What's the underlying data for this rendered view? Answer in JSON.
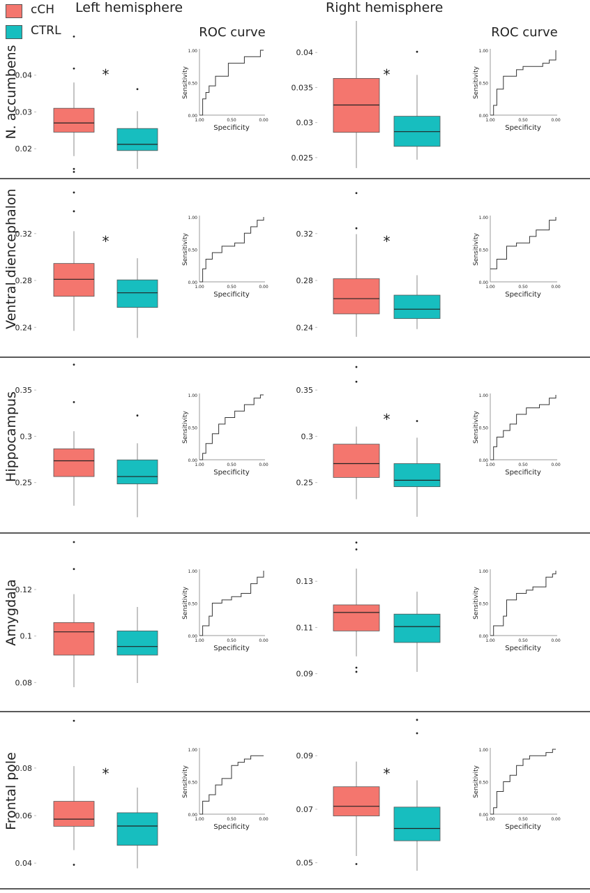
{
  "figure": {
    "left_heading": "Left hemisphere",
    "right_heading": "Right hemisphere",
    "roc_title": "ROC curve",
    "significance_marker": "*"
  },
  "legend": [
    {
      "name": "cCH",
      "color": "#F4766E"
    },
    {
      "name": "CTRL",
      "color": "#17BEBF"
    }
  ],
  "chart_data": [
    {
      "type": "boxplot",
      "region": "N. accumbens",
      "hemisphere": "left",
      "significant": true,
      "yticks": [
        0.02,
        0.03,
        0.04
      ],
      "ylim": [
        0.0115,
        0.0555
      ],
      "series": [
        {
          "name": "cCH",
          "whisker_low": 0.018,
          "q1": 0.0245,
          "median": 0.027,
          "q3": 0.031,
          "whisker_high": 0.038,
          "outliers": [
            0.0137,
            0.0145,
            0.0418,
            0.0505
          ]
        },
        {
          "name": "CTRL",
          "whisker_low": 0.0145,
          "q1": 0.0195,
          "median": 0.0212,
          "q3": 0.0255,
          "whisker_high": 0.0302,
          "outliers": [
            0.0362
          ]
        }
      ]
    },
    {
      "type": "roc",
      "region": "N. accumbens",
      "hemisphere": "left",
      "xlabel": "Specificity",
      "ylabel": "Sensitivity",
      "xticks": [
        "1.00",
        "0.50",
        "0.00"
      ],
      "yticks": [
        "0.00",
        "0.50",
        "1.00"
      ],
      "points": [
        [
          1.0,
          0.0
        ],
        [
          0.95,
          0.1
        ],
        [
          0.95,
          0.25
        ],
        [
          0.9,
          0.35
        ],
        [
          0.85,
          0.45
        ],
        [
          0.75,
          0.5
        ],
        [
          0.75,
          0.6
        ],
        [
          0.55,
          0.8
        ],
        [
          0.3,
          0.9
        ],
        [
          0.1,
          0.9
        ],
        [
          0.05,
          1.0
        ],
        [
          0.0,
          1.0
        ]
      ]
    },
    {
      "type": "boxplot",
      "region": "N. accumbens",
      "hemisphere": "right",
      "significant": true,
      "yticks": [
        0.025,
        0.03,
        0.035,
        0.04
      ],
      "ylim": [
        0.0218,
        0.0449
      ],
      "series": [
        {
          "name": "cCH",
          "whisker_low": 0.0235,
          "q1": 0.0286,
          "median": 0.0325,
          "q3": 0.0363,
          "whisker_high": 0.0445,
          "outliers": []
        },
        {
          "name": "CTRL",
          "whisker_low": 0.0247,
          "q1": 0.0266,
          "median": 0.0287,
          "q3": 0.0309,
          "whisker_high": 0.0368,
          "outliers": [
            0.0401
          ]
        }
      ]
    },
    {
      "type": "roc",
      "region": "N. accumbens",
      "hemisphere": "right",
      "xlabel": "Specificity",
      "ylabel": "Sensitivity",
      "xticks": [
        "1.00",
        "0.50",
        "0.00"
      ],
      "yticks": [
        "0.00",
        "0.50",
        "1.00"
      ],
      "points": [
        [
          1.0,
          0.0
        ],
        [
          0.95,
          0.15
        ],
        [
          0.9,
          0.4
        ],
        [
          0.8,
          0.6
        ],
        [
          0.6,
          0.7
        ],
        [
          0.5,
          0.75
        ],
        [
          0.3,
          0.75
        ],
        [
          0.2,
          0.8
        ],
        [
          0.1,
          0.85
        ],
        [
          0.0,
          1.0
        ]
      ]
    },
    {
      "type": "boxplot",
      "region": "Ventral diencephalon",
      "hemisphere": "left",
      "significant": true,
      "yticks": [
        0.24,
        0.28,
        0.32
      ],
      "ylim": [
        0.2235,
        0.3615
      ],
      "series": [
        {
          "name": "cCH",
          "whisker_low": 0.237,
          "q1": 0.2665,
          "median": 0.281,
          "q3": 0.2945,
          "whisker_high": 0.322,
          "outliers": [
            0.339,
            0.355
          ]
        },
        {
          "name": "CTRL",
          "whisker_low": 0.231,
          "q1": 0.257,
          "median": 0.2695,
          "q3": 0.2805,
          "whisker_high": 0.299,
          "outliers": []
        }
      ]
    },
    {
      "type": "roc",
      "region": "Ventral diencephalon",
      "hemisphere": "left",
      "xlabel": "Specificity",
      "ylabel": "Sensitivity",
      "xticks": [
        "1.00",
        "0.50",
        "0.00"
      ],
      "yticks": [
        "0.00",
        "0.50",
        "1.00"
      ],
      "points": [
        [
          1.0,
          0.0
        ],
        [
          0.95,
          0.2
        ],
        [
          0.9,
          0.35
        ],
        [
          0.8,
          0.45
        ],
        [
          0.65,
          0.55
        ],
        [
          0.45,
          0.6
        ],
        [
          0.3,
          0.75
        ],
        [
          0.2,
          0.85
        ],
        [
          0.1,
          0.95
        ],
        [
          0.0,
          1.0
        ]
      ]
    },
    {
      "type": "boxplot",
      "region": "Ventral diencephalon",
      "hemisphere": "right",
      "significant": true,
      "yticks": [
        0.24,
        0.28,
        0.32
      ],
      "ylim": [
        0.2235,
        0.3615
      ],
      "series": [
        {
          "name": "cCH",
          "whisker_low": 0.232,
          "q1": 0.2515,
          "median": 0.2645,
          "q3": 0.2815,
          "whisker_high": 0.3195,
          "outliers": [
            0.3245,
            0.3545
          ]
        },
        {
          "name": "CTRL",
          "whisker_low": 0.2385,
          "q1": 0.2475,
          "median": 0.2555,
          "q3": 0.2675,
          "whisker_high": 0.2845,
          "outliers": []
        }
      ]
    },
    {
      "type": "roc",
      "region": "Ventral diencephalon",
      "hemisphere": "right",
      "xlabel": "Specificity",
      "ylabel": "Sensitivity",
      "xticks": [
        "1.00",
        "0.50",
        "0.00"
      ],
      "yticks": [
        "0.00",
        "0.50",
        "1.00"
      ],
      "points": [
        [
          1.0,
          0.2
        ],
        [
          0.9,
          0.35
        ],
        [
          0.75,
          0.55
        ],
        [
          0.6,
          0.6
        ],
        [
          0.4,
          0.7
        ],
        [
          0.3,
          0.8
        ],
        [
          0.1,
          0.95
        ],
        [
          0.0,
          1.0
        ]
      ]
    },
    {
      "type": "boxplot",
      "region": "Hippocampus",
      "hemisphere": "left",
      "significant": false,
      "yticks": [
        0.25,
        0.3,
        0.35
      ],
      "ylim": [
        0.2045,
        0.3795
      ],
      "series": [
        {
          "name": "cCH",
          "whisker_low": 0.225,
          "q1": 0.2565,
          "median": 0.2735,
          "q3": 0.2865,
          "whisker_high": 0.3055,
          "outliers": [
            0.337,
            0.3775
          ]
        },
        {
          "name": "CTRL",
          "whisker_low": 0.2125,
          "q1": 0.2485,
          "median": 0.2565,
          "q3": 0.2745,
          "whisker_high": 0.2925,
          "outliers": [
            0.3225
          ]
        }
      ]
    },
    {
      "type": "roc",
      "region": "Hippocampus",
      "hemisphere": "left",
      "xlabel": "Specificity",
      "ylabel": "Sensitivity",
      "xticks": [
        "1.00",
        "0.50",
        "0.00"
      ],
      "yticks": [
        "0.00",
        "0.50",
        "1.00"
      ],
      "points": [
        [
          1.0,
          0.0
        ],
        [
          0.95,
          0.1
        ],
        [
          0.9,
          0.25
        ],
        [
          0.8,
          0.4
        ],
        [
          0.7,
          0.55
        ],
        [
          0.6,
          0.65
        ],
        [
          0.45,
          0.75
        ],
        [
          0.3,
          0.85
        ],
        [
          0.15,
          0.95
        ],
        [
          0.05,
          1.0
        ],
        [
          0.0,
          1.0
        ]
      ]
    },
    {
      "type": "boxplot",
      "region": "Hippocampus",
      "hemisphere": "right",
      "significant": true,
      "yticks": [
        0.25,
        0.3,
        0.35
      ],
      "ylim": [
        0.2045,
        0.3795
      ],
      "series": [
        {
          "name": "cCH",
          "whisker_low": 0.232,
          "q1": 0.2555,
          "median": 0.2705,
          "q3": 0.2915,
          "whisker_high": 0.3105,
          "outliers": [
            0.359,
            0.375
          ]
        },
        {
          "name": "CTRL",
          "whisker_low": 0.213,
          "q1": 0.2455,
          "median": 0.2525,
          "q3": 0.2705,
          "whisker_high": 0.2985,
          "outliers": [
            0.3165
          ]
        }
      ]
    },
    {
      "type": "roc",
      "region": "Hippocampus",
      "hemisphere": "right",
      "xlabel": "Specificity",
      "ylabel": "Sensitivity",
      "xticks": [
        "1.00",
        "0.50",
        "0.00"
      ],
      "yticks": [
        "0.00",
        "0.50",
        "1.00"
      ],
      "points": [
        [
          1.0,
          0.0
        ],
        [
          0.95,
          0.2
        ],
        [
          0.9,
          0.35
        ],
        [
          0.8,
          0.45
        ],
        [
          0.7,
          0.55
        ],
        [
          0.6,
          0.7
        ],
        [
          0.45,
          0.8
        ],
        [
          0.25,
          0.85
        ],
        [
          0.1,
          0.95
        ],
        [
          0.0,
          1.0
        ]
      ]
    },
    {
      "type": "boxplot",
      "region": "Amygdala",
      "hemisphere": "left",
      "significant": false,
      "yticks": [
        0.08,
        0.1,
        0.12
      ],
      "ylim": [
        0.0723,
        0.1419
      ],
      "series": [
        {
          "name": "cCH",
          "whisker_low": 0.078,
          "q1": 0.0918,
          "median": 0.1018,
          "q3": 0.1058,
          "whisker_high": 0.118,
          "outliers": [
            0.1288,
            0.1404
          ]
        },
        {
          "name": "CTRL",
          "whisker_low": 0.0798,
          "q1": 0.0918,
          "median": 0.0955,
          "q3": 0.1022,
          "whisker_high": 0.1125,
          "outliers": []
        }
      ]
    },
    {
      "type": "roc",
      "region": "Amygdala",
      "hemisphere": "left",
      "xlabel": "Specificity",
      "ylabel": "Sensitivity",
      "xticks": [
        "1.00",
        "0.50",
        "0.00"
      ],
      "yticks": [
        "0.00",
        "0.50",
        "1.00"
      ],
      "points": [
        [
          1.0,
          0.0
        ],
        [
          0.95,
          0.15
        ],
        [
          0.85,
          0.3
        ],
        [
          0.8,
          0.5
        ],
        [
          0.65,
          0.55
        ],
        [
          0.5,
          0.6
        ],
        [
          0.35,
          0.65
        ],
        [
          0.2,
          0.8
        ],
        [
          0.1,
          0.9
        ],
        [
          0.0,
          1.0
        ]
      ]
    },
    {
      "type": "boxplot",
      "region": "Amygdala",
      "hemisphere": "right",
      "significant": false,
      "yticks": [
        0.09,
        0.11,
        0.13
      ],
      "ylim": [
        0.0784,
        0.1485
      ],
      "series": [
        {
          "name": "cCH",
          "whisker_low": 0.0975,
          "q1": 0.1085,
          "median": 0.1165,
          "q3": 0.1198,
          "whisker_high": 0.1355,
          "outliers": [
            0.0908,
            0.0926,
            0.1438,
            0.1468
          ]
        },
        {
          "name": "CTRL",
          "whisker_low": 0.0908,
          "q1": 0.1035,
          "median": 0.1104,
          "q3": 0.1158,
          "whisker_high": 0.1255,
          "outliers": []
        }
      ]
    },
    {
      "type": "roc",
      "region": "Amygdala",
      "hemisphere": "right",
      "xlabel": "Specificity",
      "ylabel": "Sensitivity",
      "xticks": [
        "1.00",
        "0.50",
        "0.00"
      ],
      "yticks": [
        "0.00",
        "0.50",
        "1.00"
      ],
      "points": [
        [
          1.0,
          0.0
        ],
        [
          0.95,
          0.15
        ],
        [
          0.8,
          0.3
        ],
        [
          0.75,
          0.55
        ],
        [
          0.6,
          0.65
        ],
        [
          0.45,
          0.7
        ],
        [
          0.35,
          0.75
        ],
        [
          0.15,
          0.9
        ],
        [
          0.05,
          0.95
        ],
        [
          0.0,
          1.0
        ]
      ]
    },
    {
      "type": "boxplot",
      "region": "Frontal pole",
      "hemisphere": "left",
      "significant": true,
      "yticks": [
        0.04,
        0.06,
        0.08
      ],
      "ylim": [
        0.0333,
        0.1014
      ],
      "series": [
        {
          "name": "cCH",
          "whisker_low": 0.0455,
          "q1": 0.0555,
          "median": 0.0585,
          "q3": 0.066,
          "whisker_high": 0.0808,
          "outliers": [
            0.0393,
            0.0999
          ]
        },
        {
          "name": "CTRL",
          "whisker_low": 0.0378,
          "q1": 0.0475,
          "median": 0.0556,
          "q3": 0.0612,
          "whisker_high": 0.0718,
          "outliers": []
        }
      ]
    },
    {
      "type": "roc",
      "region": "Frontal pole",
      "hemisphere": "left",
      "xlabel": "Specificity",
      "ylabel": "Sensitivity",
      "xticks": [
        "1.00",
        "0.50",
        "0.00"
      ],
      "yticks": [
        "0.00",
        "0.50",
        "1.00"
      ],
      "points": [
        [
          1.0,
          0.0
        ],
        [
          0.95,
          0.2
        ],
        [
          0.85,
          0.3
        ],
        [
          0.75,
          0.45
        ],
        [
          0.65,
          0.55
        ],
        [
          0.5,
          0.75
        ],
        [
          0.4,
          0.8
        ],
        [
          0.3,
          0.85
        ],
        [
          0.2,
          0.9
        ],
        [
          0.0,
          0.9
        ]
      ]
    },
    {
      "type": "boxplot",
      "region": "Frontal pole",
      "hemisphere": "right",
      "significant": true,
      "yticks": [
        0.05,
        0.07,
        0.09
      ],
      "ylim": [
        0.0439,
        0.1044
      ],
      "series": [
        {
          "name": "cCH",
          "whisker_low": 0.0525,
          "q1": 0.0675,
          "median": 0.0711,
          "q3": 0.0784,
          "whisker_high": 0.0878,
          "outliers": [
            0.0495
          ]
        },
        {
          "name": "CTRL",
          "whisker_low": 0.047,
          "q1": 0.0582,
          "median": 0.0628,
          "q3": 0.0708,
          "whisker_high": 0.0808,
          "outliers": [
            0.0984,
            0.1034
          ]
        }
      ]
    },
    {
      "type": "roc",
      "region": "Frontal pole",
      "hemisphere": "right",
      "xlabel": "Specificity",
      "ylabel": "Sensitivity",
      "xticks": [
        "1.00",
        "0.50",
        "0.00"
      ],
      "yticks": [
        "0.00",
        "0.50",
        "1.00"
      ],
      "points": [
        [
          1.0,
          0.0
        ],
        [
          0.95,
          0.1
        ],
        [
          0.9,
          0.35
        ],
        [
          0.8,
          0.5
        ],
        [
          0.7,
          0.6
        ],
        [
          0.6,
          0.75
        ],
        [
          0.5,
          0.85
        ],
        [
          0.4,
          0.9
        ],
        [
          0.15,
          0.95
        ],
        [
          0.05,
          1.0
        ],
        [
          0.0,
          1.0
        ]
      ]
    }
  ]
}
